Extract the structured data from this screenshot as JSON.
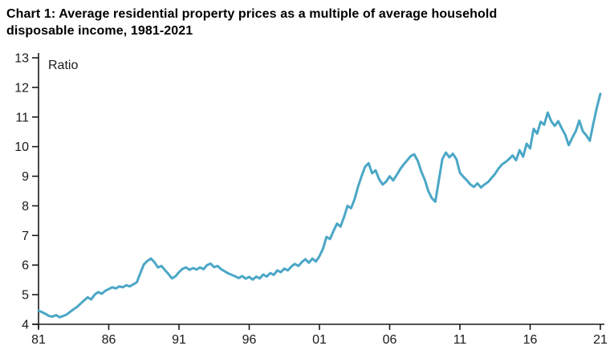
{
  "header": {
    "title_line1": "Chart 1: Average residential property prices as a multiple of average household",
    "title_line2": "disposable income, 1981-2021"
  },
  "colors": {
    "line": "#4BA7C6",
    "axis": "#1a1a1a",
    "text": "#000000",
    "background": "#ffffff"
  },
  "chart_data": {
    "type": "line",
    "title": "Chart 1: Average residential property prices as a multiple of average household disposable income, 1981-2021",
    "xlabel": "",
    "ylabel": "Ratio",
    "ylim": [
      4,
      13
    ],
    "y_ticks": [
      4,
      5,
      6,
      7,
      8,
      9,
      10,
      11,
      12,
      13
    ],
    "x_tick_years": [
      1981,
      1986,
      1991,
      1996,
      2001,
      2006,
      2011,
      2016,
      2021
    ],
    "x_tick_labels": [
      "81",
      "86",
      "91",
      "96",
      "01",
      "06",
      "11",
      "16",
      "21"
    ],
    "x_range_years": [
      1981,
      2021
    ],
    "x_start": 1981,
    "x_step_years": 0.25,
    "grid": false,
    "legend_position": "none",
    "series": [
      {
        "name": "Average residential property price to household disposable income ratio",
        "color": "#4BA7C6",
        "values": [
          4.46,
          4.41,
          4.35,
          4.28,
          4.26,
          4.31,
          4.24,
          4.28,
          4.33,
          4.42,
          4.51,
          4.59,
          4.7,
          4.81,
          4.91,
          4.84,
          5.0,
          5.09,
          5.03,
          5.13,
          5.19,
          5.25,
          5.21,
          5.28,
          5.25,
          5.32,
          5.28,
          5.35,
          5.42,
          5.73,
          6.02,
          6.14,
          6.22,
          6.1,
          5.92,
          5.97,
          5.83,
          5.7,
          5.55,
          5.62,
          5.76,
          5.87,
          5.92,
          5.84,
          5.9,
          5.85,
          5.92,
          5.86,
          6.0,
          6.05,
          5.93,
          5.97,
          5.86,
          5.79,
          5.72,
          5.67,
          5.62,
          5.56,
          5.63,
          5.54,
          5.6,
          5.51,
          5.61,
          5.55,
          5.68,
          5.61,
          5.73,
          5.67,
          5.82,
          5.76,
          5.88,
          5.82,
          5.95,
          6.04,
          5.97,
          6.1,
          6.2,
          6.08,
          6.22,
          6.12,
          6.3,
          6.55,
          6.95,
          6.88,
          7.15,
          7.4,
          7.3,
          7.62,
          8.0,
          7.92,
          8.22,
          8.65,
          9.0,
          9.32,
          9.44,
          9.1,
          9.2,
          8.9,
          8.72,
          8.82,
          9.0,
          8.86,
          9.04,
          9.24,
          9.4,
          9.54,
          9.68,
          9.74,
          9.52,
          9.16,
          8.88,
          8.5,
          8.26,
          8.14,
          8.86,
          9.58,
          9.8,
          9.64,
          9.76,
          9.58,
          9.12,
          8.98,
          8.86,
          8.72,
          8.64,
          8.76,
          8.62,
          8.72,
          8.8,
          8.94,
          9.08,
          9.26,
          9.4,
          9.48,
          9.58,
          9.7,
          9.54,
          9.88,
          9.66,
          10.1,
          9.94,
          10.6,
          10.44,
          10.84,
          10.74,
          11.15,
          10.86,
          10.7,
          10.86,
          10.62,
          10.4,
          10.05,
          10.3,
          10.52,
          10.88,
          10.52,
          10.38,
          10.2,
          10.78,
          11.32,
          11.78
        ]
      }
    ]
  }
}
